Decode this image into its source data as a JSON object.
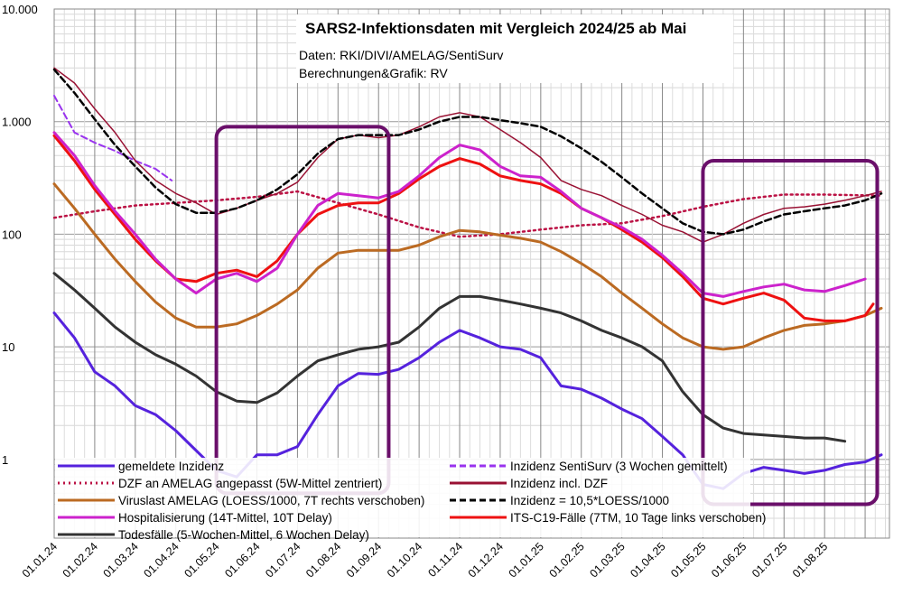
{
  "chart_data": {
    "type": "line",
    "title": "SARS2-Infektionsdaten mit Vergleich 2024/25 ab Mai",
    "subtitle_lines": [
      "Daten: RKI/DIVI/AMELAG/SentiSurv",
      "Berechnungen&Grafik: RV"
    ],
    "yscale": "log",
    "ylim": [
      0.2,
      10000
    ],
    "y_ticks": [
      {
        "value": 1,
        "label": "1"
      },
      {
        "value": 10,
        "label": "10"
      },
      {
        "value": 100,
        "label": "100"
      },
      {
        "value": 1000,
        "label": "1.000"
      },
      {
        "value": 10000,
        "label": "10.000"
      }
    ],
    "x_ticks": [
      "01.01.24",
      "01.02.24",
      "01.03.24",
      "01.04.24",
      "01.05.24",
      "01.06.24",
      "01.07.24",
      "01.08.24",
      "01.09.24",
      "01.10.24",
      "01.11.24",
      "01.12.24",
      "01.01.25",
      "01.02.25",
      "01.03.25",
      "01.04.25",
      "01.05.25",
      "01.06.25",
      "01.07.25",
      "01.08.25"
    ],
    "xlim": [
      0,
      20.6
    ],
    "grid": true,
    "highlight_boxes": [
      {
        "x_start": 4.0,
        "x_end": 8.25,
        "y_low": 0.5,
        "y_high": 900
      },
      {
        "x_start": 16.0,
        "x_end": 20.3,
        "y_low": 0.4,
        "y_high": 450
      }
    ],
    "series": [
      {
        "name": "gemeldete Inzidenz",
        "color": "#5522dd",
        "style": "solid",
        "width": 3,
        "x": [
          0,
          0.5,
          1,
          1.5,
          2,
          2.5,
          3,
          3.5,
          4,
          4.5,
          5,
          5.5,
          6,
          6.5,
          7,
          7.5,
          8,
          8.5,
          9,
          9.5,
          10,
          10.5,
          11,
          11.5,
          12,
          12.5,
          13,
          13.5,
          14,
          14.5,
          15,
          15.5,
          16,
          16.5,
          17,
          17.5,
          18,
          18.5,
          19,
          19.5,
          20,
          20.4
        ],
        "y": [
          20,
          12,
          6,
          4.5,
          3,
          2.5,
          1.8,
          1.2,
          0.8,
          0.7,
          1.1,
          1.1,
          1.3,
          2.5,
          4.5,
          5.8,
          5.7,
          6.3,
          8,
          11,
          14,
          12,
          10,
          9.5,
          8,
          4.5,
          4.2,
          3.5,
          2.8,
          2.3,
          1.6,
          1.1,
          0.6,
          0.55,
          0.75,
          0.85,
          0.8,
          0.75,
          0.8,
          0.9,
          0.95,
          1.1
        ]
      },
      {
        "name": "Inzidenz SentiSurv (3 Wochen gemittelt)",
        "color": "#9933ee",
        "style": "dashed",
        "width": 2,
        "x": [
          0,
          0.5,
          1,
          1.5,
          2,
          2.5,
          2.9
        ],
        "y": [
          1700,
          800,
          650,
          550,
          450,
          380,
          300
        ]
      },
      {
        "name": "DZF an AMELAG angepasst (5W-Mittel zentriert)",
        "color": "#bb1144",
        "style": "dotted",
        "width": 2.5,
        "x": [
          0,
          1,
          2,
          3,
          4,
          5,
          6,
          7,
          8,
          9,
          10,
          11,
          12,
          13,
          14,
          15,
          16,
          17,
          18,
          19,
          20.4
        ],
        "y": [
          140,
          160,
          180,
          190,
          200,
          215,
          240,
          190,
          150,
          115,
          95,
          100,
          110,
          120,
          125,
          145,
          175,
          205,
          225,
          225,
          220
        ]
      },
      {
        "name": "Inzidenz incl. DZF",
        "color": "#991133",
        "style": "solid",
        "width": 1.5,
        "x": [
          0,
          0.5,
          1,
          1.5,
          2,
          2.5,
          3,
          3.5,
          4,
          4.5,
          5,
          5.5,
          6,
          6.5,
          7,
          7.5,
          8,
          8.5,
          9,
          9.5,
          10,
          10.5,
          11,
          11.5,
          12,
          12.5,
          13,
          13.5,
          14,
          14.5,
          15,
          15.5,
          16,
          16.5,
          17,
          17.5,
          18,
          18.5,
          19,
          19.5,
          20,
          20.4
        ],
        "y": [
          3000,
          2200,
          1300,
          800,
          450,
          300,
          230,
          190,
          150,
          170,
          200,
          230,
          290,
          480,
          700,
          760,
          720,
          760,
          900,
          1100,
          1200,
          1100,
          850,
          650,
          480,
          300,
          250,
          220,
          180,
          150,
          120,
          105,
          85,
          100,
          125,
          150,
          170,
          175,
          185,
          200,
          220,
          240
        ]
      },
      {
        "name": "Viruslast AMELAG (LOESS/1000, 7T rechts verschoben)",
        "color": "#bb6a22",
        "style": "solid",
        "width": 3,
        "x": [
          0,
          0.5,
          1,
          1.5,
          2,
          2.5,
          3,
          3.5,
          4,
          4.5,
          5,
          5.5,
          6,
          6.5,
          7,
          7.5,
          8,
          8.5,
          9,
          9.5,
          10,
          10.5,
          11,
          11.5,
          12,
          12.5,
          13,
          13.5,
          14,
          14.5,
          15,
          15.5,
          16,
          16.5,
          17,
          17.5,
          18,
          18.5,
          19,
          19.5,
          20,
          20.4
        ],
        "y": [
          280,
          170,
          100,
          60,
          38,
          25,
          18,
          15,
          15,
          16,
          19,
          24,
          32,
          50,
          68,
          72,
          72,
          72,
          80,
          95,
          108,
          105,
          98,
          92,
          85,
          70,
          55,
          42,
          30,
          22,
          16,
          12,
          10,
          9.5,
          10,
          12,
          14,
          15.5,
          16,
          17,
          19,
          22
        ]
      },
      {
        "name": "Incidenz = 10,5*LOESS/1000",
        "color": "#000000",
        "style": "dashed",
        "width": 2.5,
        "x": [
          0,
          0.5,
          1,
          1.5,
          2,
          2.5,
          3,
          3.5,
          4,
          4.5,
          5,
          5.5,
          6,
          6.5,
          7,
          7.5,
          8,
          8.5,
          9,
          9.5,
          10,
          10.5,
          11,
          11.5,
          12,
          12.5,
          13,
          13.5,
          14,
          14.5,
          15,
          15.5,
          16,
          16.5,
          17,
          17.5,
          18,
          18.5,
          19,
          19.5,
          20,
          20.4
        ],
        "y": [
          2900,
          1800,
          1050,
          620,
          400,
          260,
          185,
          155,
          155,
          170,
          200,
          250,
          340,
          520,
          700,
          760,
          760,
          760,
          850,
          1000,
          1100,
          1100,
          1030,
          970,
          900,
          740,
          580,
          440,
          320,
          230,
          170,
          125,
          105,
          100,
          110,
          130,
          150,
          160,
          170,
          180,
          200,
          230
        ]
      },
      {
        "name": "Hospitalisierung (14T-Mittel, 10T Delay)",
        "color": "#cc22cc",
        "style": "solid",
        "width": 3,
        "x": [
          0,
          0.5,
          1,
          1.5,
          2,
          2.5,
          3,
          3.5,
          4,
          4.5,
          5,
          5.5,
          6,
          6.5,
          7,
          7.5,
          8,
          8.5,
          9,
          9.5,
          10,
          10.5,
          11,
          11.5,
          12,
          12.5,
          13,
          13.5,
          14,
          14.5,
          15,
          15.5,
          16,
          16.5,
          17,
          17.5,
          18,
          18.5,
          19,
          19.5,
          20
        ],
        "y": [
          800,
          500,
          270,
          160,
          100,
          60,
          40,
          30,
          40,
          45,
          38,
          50,
          100,
          180,
          230,
          220,
          210,
          240,
          330,
          480,
          620,
          560,
          400,
          330,
          320,
          240,
          170,
          140,
          115,
          90,
          65,
          45,
          30,
          28,
          31,
          34,
          36,
          32,
          31,
          35,
          40
        ]
      },
      {
        "name": "ITS-C19-Fälle (7TM, 10 Tage links verschoben)",
        "color": "#ee1111",
        "style": "solid",
        "width": 3,
        "x": [
          0,
          0.5,
          1,
          1.5,
          2,
          2.5,
          3,
          3.5,
          4,
          4.5,
          5,
          5.5,
          6,
          6.5,
          7,
          7.5,
          8,
          8.5,
          9,
          9.5,
          10,
          10.5,
          11,
          11.5,
          12,
          12.5,
          13,
          13.5,
          14,
          14.5,
          15,
          15.5,
          16,
          16.5,
          17,
          17.5,
          18,
          18.5,
          19,
          19.5,
          20,
          20.2
        ],
        "y": [
          750,
          450,
          250,
          150,
          90,
          58,
          40,
          38,
          45,
          48,
          42,
          58,
          100,
          150,
          180,
          190,
          190,
          230,
          310,
          400,
          470,
          420,
          330,
          300,
          280,
          230,
          170,
          140,
          110,
          85,
          62,
          42,
          27,
          24,
          27,
          30,
          26,
          18,
          17,
          17,
          19,
          24
        ]
      },
      {
        "name": "Todesfälle (5-Wochen-Mittel, 6 Wochen Delay)",
        "color": "#333333",
        "style": "solid",
        "width": 3,
        "x": [
          0,
          0.5,
          1,
          1.5,
          2,
          2.5,
          3,
          3.5,
          4,
          4.5,
          5,
          5.5,
          6,
          6.5,
          7,
          7.5,
          8,
          8.5,
          9,
          9.5,
          10,
          10.5,
          11,
          11.5,
          12,
          12.5,
          13,
          13.5,
          14,
          14.5,
          15,
          15.5,
          16,
          16.5,
          17,
          17.5,
          18,
          18.5,
          19,
          19.5
        ],
        "y": [
          45,
          32,
          22,
          15,
          11,
          8.5,
          7,
          5.5,
          4,
          3.3,
          3.2,
          3.9,
          5.5,
          7.5,
          8.5,
          9.5,
          10,
          11,
          15,
          22,
          28,
          28,
          26,
          24,
          22,
          20,
          17,
          14,
          12,
          10,
          7.5,
          4,
          2.5,
          1.9,
          1.7,
          1.65,
          1.6,
          1.55,
          1.55,
          1.45
        ]
      }
    ],
    "legend": {
      "placement": "bottom",
      "entries": [
        {
          "label": "gemeldete Inzidenz",
          "color": "#5522dd",
          "style": "solid"
        },
        {
          "label": "Inzidenz SentiSurv (3 Wochen gemittelt)",
          "color": "#9933ee",
          "style": "dashed"
        },
        {
          "label": "DZF an AMELAG angepasst (5W-Mittel zentriert)",
          "color": "#bb1144",
          "style": "dotted"
        },
        {
          "label": "Inzidenz incl. DZF",
          "color": "#991133",
          "style": "solid"
        },
        {
          "label": "Viruslast AMELAG (LOESS/1000, 7T rechts verschoben)",
          "color": "#bb6a22",
          "style": "solid"
        },
        {
          "label": "Inzidenz = 10,5*LOESS/1000",
          "color": "#000000",
          "style": "dashed"
        },
        {
          "label": "Hospitalisierung (14T-Mittel, 10T Delay)",
          "color": "#cc22cc",
          "style": "solid"
        },
        {
          "label": "ITS-C19-Fälle (7TM, 10 Tage links verschoben)",
          "color": "#ee1111",
          "style": "solid"
        },
        {
          "label": "Todesfälle (5-Wochen-Mittel, 6 Wochen Delay)",
          "color": "#333333",
          "style": "solid"
        }
      ]
    }
  }
}
